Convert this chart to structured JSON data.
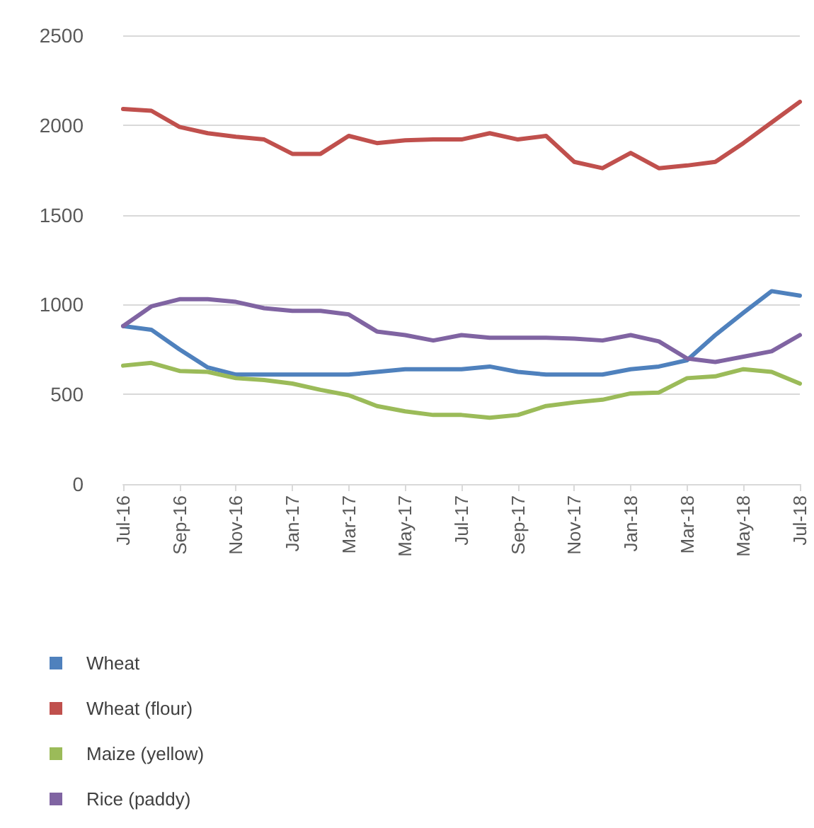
{
  "chart_data": {
    "type": "line",
    "categories": [
      "Jul-16",
      null,
      "Sep-16",
      null,
      "Nov-16",
      null,
      "Jan-17",
      null,
      "Mar-17",
      null,
      "May-17",
      null,
      "Jul-17",
      null,
      "Sep-17",
      null,
      "Nov-17",
      null,
      "Jan-18",
      null,
      "Mar-18",
      null,
      "May-18",
      null,
      "Jul-18"
    ],
    "series": [
      {
        "name": "Wheat",
        "color": "#4f81bd",
        "values": [
          880,
          860,
          750,
          650,
          610,
          610,
          610,
          610,
          610,
          625,
          640,
          640,
          640,
          655,
          625,
          610,
          610,
          610,
          640,
          655,
          690,
          830,
          955,
          1075,
          1050
        ]
      },
      {
        "name": "Wheat (flour)",
        "color": "#c0504d",
        "values": [
          2090,
          2080,
          1990,
          1955,
          1935,
          1920,
          1840,
          1840,
          1940,
          1900,
          1915,
          1920,
          1920,
          1955,
          1920,
          1940,
          1795,
          1760,
          1845,
          1760,
          1775,
          1795,
          1900,
          2015,
          2130
        ]
      },
      {
        "name": "Maize (yellow)",
        "color": "#9bbb59",
        "values": [
          660,
          675,
          630,
          625,
          590,
          580,
          560,
          525,
          495,
          435,
          405,
          385,
          385,
          370,
          385,
          435,
          455,
          470,
          505,
          510,
          590,
          600,
          640,
          625,
          560
        ]
      },
      {
        "name": "Rice (paddy)",
        "color": "#8064a2",
        "values": [
          880,
          990,
          1030,
          1030,
          1015,
          980,
          965,
          965,
          945,
          850,
          830,
          800,
          830,
          815,
          815,
          815,
          810,
          800,
          830,
          795,
          700,
          680,
          710,
          740,
          830
        ]
      }
    ],
    "ylim": [
      0,
      2500
    ],
    "yticks": [
      0,
      500,
      1000,
      1500,
      2000,
      2500
    ],
    "grid": "y",
    "legend": "bottom left",
    "marker": "none",
    "line_style": "solid"
  }
}
